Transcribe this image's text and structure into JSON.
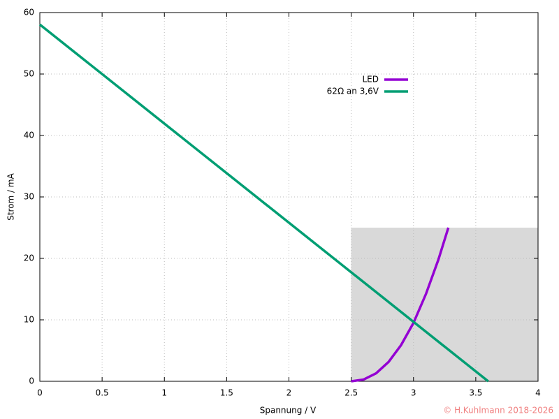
{
  "chart_data": {
    "type": "line",
    "x_label": "Spannung / V",
    "y_label": "Strom / mA",
    "xlim": [
      0,
      4
    ],
    "xticks": [
      0,
      0.5,
      1,
      1.5,
      2,
      2.5,
      3,
      3.5,
      4
    ],
    "ylim": [
      0,
      60
    ],
    "yticks": [
      0,
      10,
      20,
      30,
      40,
      50,
      60
    ],
    "grid": true,
    "legend": "top",
    "highlight": {
      "x": [
        2.5,
        4
      ],
      "y": [
        0,
        25
      ],
      "color": "#d9d9d9"
    },
    "series": [
      {
        "name": "LED",
        "color": "#9400d3",
        "x": [
          2.5,
          2.6,
          2.7,
          2.8,
          2.9,
          3.0,
          3.1,
          3.2,
          3.28
        ],
        "values": [
          0,
          0.29,
          1.3,
          3.15,
          5.88,
          9.5,
          14.2,
          19.8,
          25
        ]
      },
      {
        "name": "62Ω an 3,6V",
        "color": "#009e73",
        "x": [
          0,
          3.6
        ],
        "values": [
          58.06,
          0
        ]
      }
    ],
    "copyright": "© H.Kuhlmann 2018-2026"
  }
}
